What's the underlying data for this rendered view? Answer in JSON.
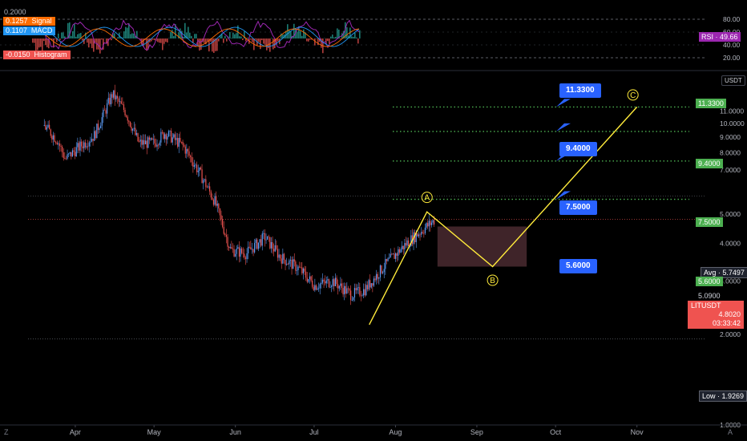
{
  "colors": {
    "background": "#000000",
    "up": "#5b9cf6",
    "down": "#ef5350",
    "rsi": "#9c27b0",
    "macd": "#2196f3",
    "signal": "#ff6d00",
    "histogram_pos": "#26a69a",
    "histogram_neg": "#ef5350",
    "wave": "#ffeb3b",
    "target_line": "#4caf50",
    "callout": "#2962ff",
    "zone": "#4a2a30"
  },
  "indicator_legend": {
    "signal_value": "0.1257",
    "signal_name": "Signal",
    "macd_value": "0.1107",
    "macd_name": "MACD",
    "histogram_value": "-0.0150",
    "histogram_name": "Histogram",
    "macd_scale_top": "0.2000"
  },
  "rsi_pane": {
    "ticks": [
      "80.00",
      "60.00",
      "40.00",
      "20.00"
    ],
    "label": "RSI",
    "value": "49.66"
  },
  "price_axis": {
    "currency": "USDT",
    "ticks": [
      "11.0000",
      "10.0000",
      "9.0000",
      "8.0000",
      "7.0000",
      "5.0000",
      "4.0000",
      "3.0000",
      "2.0000",
      "1.0000"
    ],
    "tick_values": [
      11,
      10,
      9,
      8,
      7,
      5,
      4,
      3,
      2,
      1
    ],
    "range": [
      1.0,
      14.6
    ],
    "scale": "log"
  },
  "time_axis": {
    "labels": [
      "Apr",
      "May",
      "Jun",
      "Jul",
      "Aug",
      "Sep",
      "Oct",
      "Nov"
    ],
    "dates": [
      "2023-04-01",
      "2023-05-01",
      "2023-06-01",
      "2023-07-01",
      "2023-08-01",
      "2023-09-01",
      "2023-10-01",
      "2023-11-01"
    ]
  },
  "price_labels": {
    "avg_label": "Avg",
    "avg_value": "5.7497",
    "last_high": "5.0900",
    "symbol": "LITUSDT",
    "last_price": "4.8020",
    "countdown": "03:33:42",
    "low_label": "Low",
    "low_value": "1.9269"
  },
  "targets": [
    {
      "value": "11.3300",
      "price": 11.33
    },
    {
      "value": "9.4000",
      "price": 9.4
    },
    {
      "value": "7.5000",
      "price": 7.5
    },
    {
      "value": "5.6000",
      "price": 5.6
    }
  ],
  "wave_labels": {
    "a": "A",
    "b": "B",
    "c": "C"
  },
  "corner": {
    "left": "Z",
    "right": "A"
  },
  "chart_data": {
    "type": "candlestick",
    "symbol": "LITUSDT",
    "price_scale": "log",
    "y_range": [
      1.0,
      14.6
    ],
    "approx_closes": [
      {
        "date": "2023-03-20",
        "price": 9.8
      },
      {
        "date": "2023-03-25",
        "price": 8.8
      },
      {
        "date": "2023-03-28",
        "price": 7.6
      },
      {
        "date": "2023-04-02",
        "price": 8.3
      },
      {
        "date": "2023-04-08",
        "price": 9.1
      },
      {
        "date": "2023-04-15",
        "price": 12.5
      },
      {
        "date": "2023-04-20",
        "price": 10.9
      },
      {
        "date": "2023-04-25",
        "price": 8.6
      },
      {
        "date": "2023-05-01",
        "price": 8.6
      },
      {
        "date": "2023-05-05",
        "price": 9.3
      },
      {
        "date": "2023-05-12",
        "price": 8.4
      },
      {
        "date": "2023-05-18",
        "price": 6.9
      },
      {
        "date": "2023-05-24",
        "price": 5.5
      },
      {
        "date": "2023-05-30",
        "price": 3.8
      },
      {
        "date": "2023-06-05",
        "price": 3.7
      },
      {
        "date": "2023-06-12",
        "price": 4.2
      },
      {
        "date": "2023-06-18",
        "price": 3.6
      },
      {
        "date": "2023-06-25",
        "price": 3.3
      },
      {
        "date": "2023-07-01",
        "price": 2.9
      },
      {
        "date": "2023-07-08",
        "price": 3.0
      },
      {
        "date": "2023-07-15",
        "price": 2.7
      },
      {
        "date": "2023-07-20",
        "price": 2.8
      },
      {
        "date": "2023-07-28",
        "price": 3.4
      },
      {
        "date": "2023-08-05",
        "price": 4.0
      },
      {
        "date": "2023-08-12",
        "price": 4.5
      },
      {
        "date": "2023-08-16",
        "price": 4.8
      }
    ],
    "wave_path": [
      {
        "label": "",
        "date": "2023-07-22",
        "price": 2.15
      },
      {
        "label": "A",
        "date": "2023-08-13",
        "price": 5.09
      },
      {
        "label": "B",
        "date": "2023-09-07",
        "price": 3.35
      },
      {
        "label": "C",
        "date": "2023-11-01",
        "price": 11.33
      }
    ],
    "zone": {
      "date_from": "2023-08-17",
      "date_to": "2023-09-20",
      "price_high": 4.55,
      "price_low": 3.35
    },
    "targets": [
      11.33,
      9.4,
      7.5,
      5.6
    ],
    "avg_price": 5.7497,
    "period_low": 1.9269,
    "last_price": 4.802,
    "rsi": 49.66,
    "macd": 0.1107,
    "signal": 0.1257,
    "histogram": -0.015
  }
}
